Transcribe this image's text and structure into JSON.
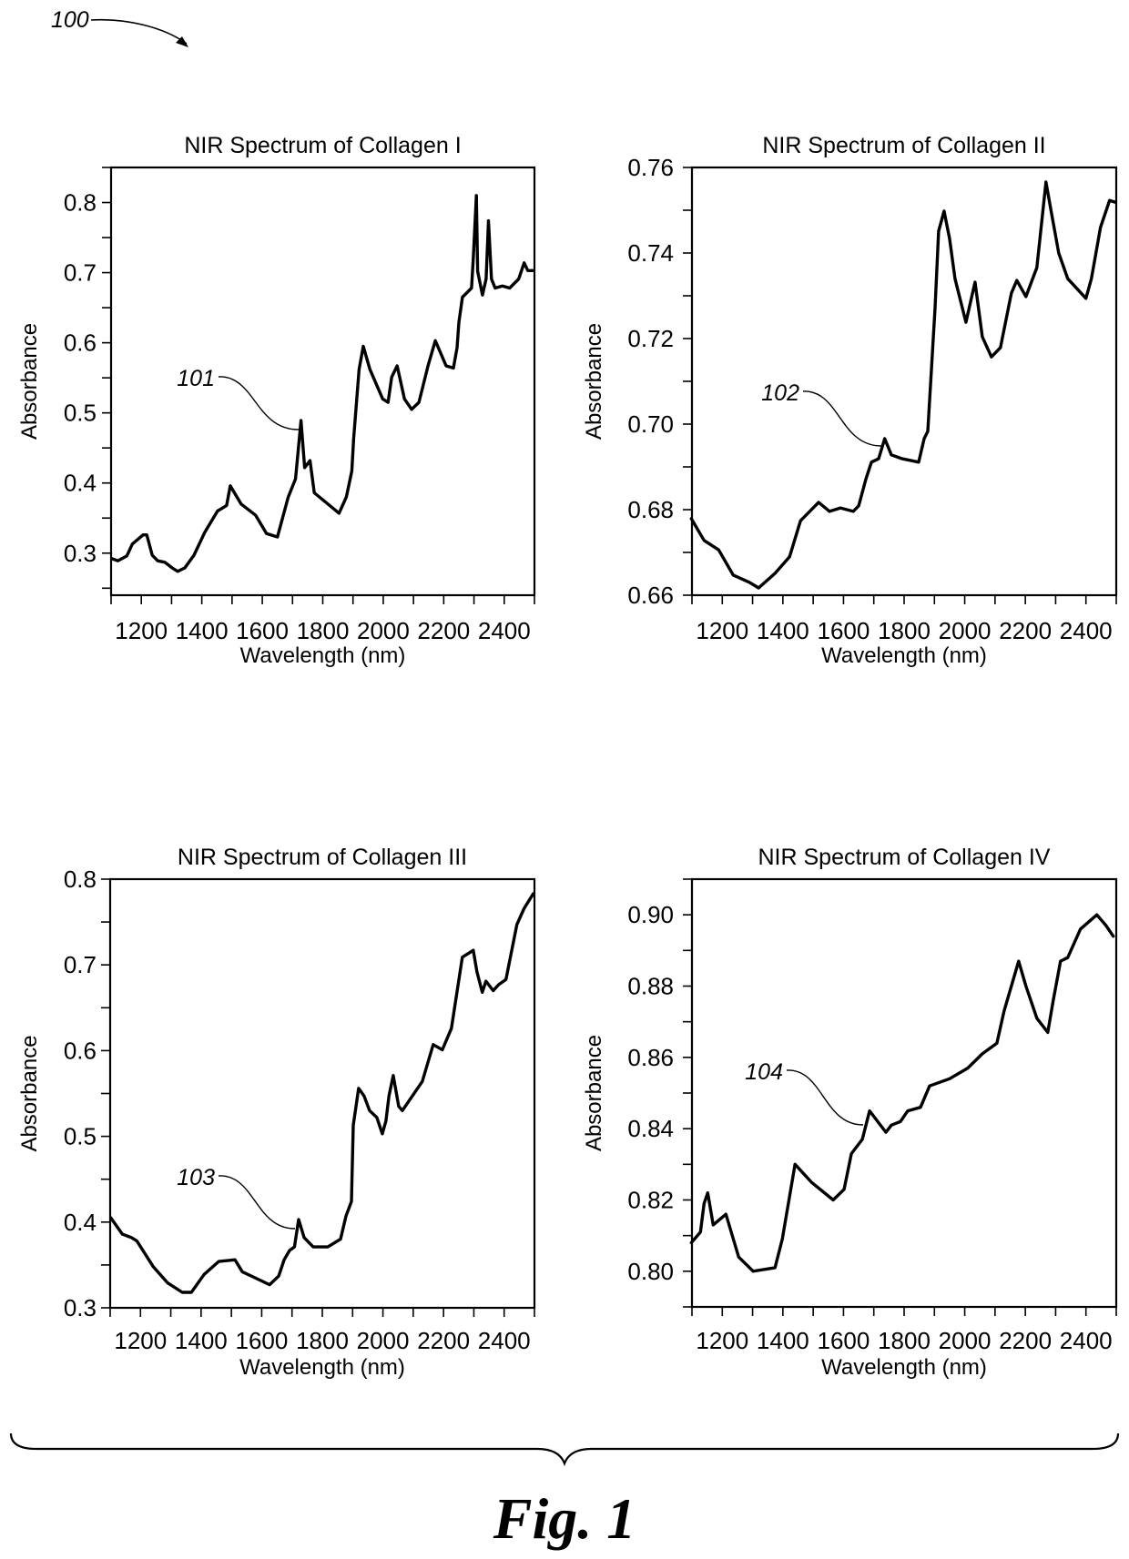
{
  "figure": {
    "reference_numeral": "100",
    "caption": "Fig. 1"
  },
  "chart_data": [
    {
      "type": "line",
      "title": "NIR Spectrum of Collagen I",
      "xlabel": "Wavelength (nm)",
      "ylabel": "Absorbance",
      "xlim": [
        1100,
        2500
      ],
      "ylim": [
        0.24,
        0.85
      ],
      "xticks": [
        1200,
        1400,
        1600,
        1800,
        2000,
        2200,
        2400
      ],
      "xtick_labels": [
        "1200",
        "1400",
        "1600",
        "1800",
        "2000",
        "2200",
        "2400"
      ],
      "yticks": [
        0.3,
        0.4,
        0.5,
        0.6,
        0.7,
        0.8
      ],
      "ytick_labels": [
        "0.3",
        "0.4",
        "0.5",
        "0.6",
        "0.7",
        "0.8"
      ],
      "minor_x_step": 100,
      "minor_y_step": 0.05,
      "grid": false,
      "annotation": {
        "label": "101",
        "x": 1728,
        "y": 0.475
      },
      "series": [
        {
          "name": "Collagen I",
          "x": [
            1104,
            1122,
            1152,
            1170,
            1206,
            1218,
            1236,
            1254,
            1278,
            1302,
            1320,
            1344,
            1374,
            1410,
            1452,
            1482,
            1494,
            1530,
            1578,
            1614,
            1650,
            1686,
            1710,
            1728,
            1740,
            1758,
            1772,
            1854,
            1878,
            1896,
            1902,
            1920,
            1934,
            1956,
            1998,
            2016,
            2028,
            2046,
            2070,
            2094,
            2118,
            2148,
            2172,
            2208,
            2232,
            2244,
            2250,
            2262,
            2292,
            2298,
            2308,
            2312,
            2328,
            2340,
            2348,
            2358,
            2370,
            2394,
            2418,
            2448,
            2466,
            2478,
            2496
          ],
          "y": [
            0.292,
            0.289,
            0.296,
            0.313,
            0.326,
            0.326,
            0.297,
            0.289,
            0.287,
            0.279,
            0.274,
            0.279,
            0.297,
            0.33,
            0.36,
            0.368,
            0.396,
            0.37,
            0.354,
            0.328,
            0.323,
            0.38,
            0.406,
            0.489,
            0.422,
            0.432,
            0.386,
            0.357,
            0.38,
            0.417,
            0.463,
            0.562,
            0.595,
            0.562,
            0.52,
            0.515,
            0.551,
            0.567,
            0.52,
            0.505,
            0.515,
            0.567,
            0.603,
            0.567,
            0.564,
            0.593,
            0.629,
            0.665,
            0.678,
            0.722,
            0.81,
            0.702,
            0.668,
            0.691,
            0.774,
            0.691,
            0.678,
            0.681,
            0.678,
            0.691,
            0.714,
            0.703,
            0.703
          ]
        }
      ]
    },
    {
      "type": "line",
      "title": "NIR Spectrum of Collagen II",
      "xlabel": "Wavelength (nm)",
      "ylabel": "Absorbance",
      "xlim": [
        1100,
        2500
      ],
      "ylim": [
        0.66,
        0.76
      ],
      "xticks": [
        1200,
        1400,
        1600,
        1800,
        2000,
        2200,
        2400
      ],
      "xtick_labels": [
        "1200",
        "1400",
        "1600",
        "1800",
        "2000",
        "2200",
        "2400"
      ],
      "yticks": [
        0.66,
        0.68,
        0.7,
        0.72,
        0.74,
        0.76
      ],
      "ytick_labels": [
        "0.66",
        "0.68",
        "0.70",
        "0.72",
        "0.74",
        "0.76"
      ],
      "minor_x_step": 100,
      "minor_y_step": 0.01,
      "grid": false,
      "annotation": {
        "label": "102",
        "x": 1730,
        "y": 0.6955
      },
      "series": [
        {
          "name": "Collagen II",
          "x": [
            1098,
            1140,
            1188,
            1236,
            1290,
            1320,
            1374,
            1422,
            1458,
            1518,
            1554,
            1590,
            1632,
            1650,
            1674,
            1692,
            1716,
            1736,
            1758,
            1794,
            1848,
            1866,
            1878,
            1902,
            1914,
            1932,
            1950,
            1968,
            1986,
            2004,
            2034,
            2058,
            2088,
            2118,
            2154,
            2172,
            2202,
            2238,
            2252,
            2268,
            2286,
            2310,
            2340,
            2400,
            2418,
            2448,
            2478,
            2496
          ],
          "y": [
            0.6779,
            0.6728,
            0.6706,
            0.6647,
            0.663,
            0.6617,
            0.6651,
            0.669,
            0.6774,
            0.6817,
            0.6796,
            0.6804,
            0.6796,
            0.6809,
            0.6872,
            0.6911,
            0.6919,
            0.6966,
            0.6928,
            0.6919,
            0.6911,
            0.6966,
            0.6983,
            0.7272,
            0.7451,
            0.7498,
            0.7434,
            0.734,
            0.7289,
            0.7238,
            0.7332,
            0.7204,
            0.7157,
            0.7179,
            0.7306,
            0.7336,
            0.7298,
            0.7366,
            0.746,
            0.7566,
            0.7494,
            0.74,
            0.734,
            0.7294,
            0.734,
            0.746,
            0.7523,
            0.7519
          ]
        }
      ]
    },
    {
      "type": "line",
      "title": "NIR Spectrum of Collagen III",
      "xlabel": "Wavelength (nm)",
      "ylabel": "Absorbance",
      "xlim": [
        1100,
        2500
      ],
      "ylim": [
        0.3,
        0.8
      ],
      "xticks": [
        1200,
        1400,
        1600,
        1800,
        2000,
        2200,
        2400
      ],
      "xtick_labels": [
        "1200",
        "1400",
        "1600",
        "1800",
        "2000",
        "2200",
        "2400"
      ],
      "yticks": [
        0.3,
        0.4,
        0.5,
        0.6,
        0.7,
        0.8
      ],
      "ytick_labels": [
        "0.3",
        "0.4",
        "0.5",
        "0.6",
        "0.7",
        "0.8"
      ],
      "minor_x_step": 100,
      "minor_y_step": 0.05,
      "grid": false,
      "annotation": {
        "label": "103",
        "x": 1712,
        "y": 0.39
      },
      "series": [
        {
          "name": "Collagen III",
          "x": [
            1102,
            1140,
            1170,
            1188,
            1242,
            1290,
            1338,
            1368,
            1410,
            1458,
            1512,
            1536,
            1578,
            1626,
            1656,
            1674,
            1692,
            1708,
            1722,
            1740,
            1770,
            1818,
            1860,
            1878,
            1896,
            1902,
            1920,
            1938,
            1956,
            1980,
            1998,
            2010,
            2020,
            2034,
            2052,
            2064,
            2130,
            2166,
            2196,
            2226,
            2262,
            2280,
            2298,
            2310,
            2328,
            2340,
            2364,
            2382,
            2406,
            2424,
            2442,
            2466,
            2496
          ],
          "y": [
            0.405,
            0.386,
            0.382,
            0.378,
            0.348,
            0.329,
            0.318,
            0.318,
            0.339,
            0.354,
            0.356,
            0.342,
            0.335,
            0.327,
            0.337,
            0.356,
            0.367,
            0.371,
            0.403,
            0.382,
            0.371,
            0.371,
            0.38,
            0.407,
            0.424,
            0.513,
            0.556,
            0.547,
            0.53,
            0.522,
            0.503,
            0.518,
            0.547,
            0.571,
            0.535,
            0.53,
            0.564,
            0.607,
            0.601,
            0.626,
            0.709,
            0.713,
            0.717,
            0.692,
            0.668,
            0.681,
            0.67,
            0.677,
            0.683,
            0.715,
            0.747,
            0.766,
            0.783
          ]
        }
      ]
    },
    {
      "type": "line",
      "title": "NIR Spectrum of Collagen IV",
      "xlabel": "Wavelength (nm)",
      "ylabel": "Absorbance",
      "xlim": [
        1100,
        2500
      ],
      "ylim": [
        0.79,
        0.91
      ],
      "xticks": [
        1200,
        1400,
        1600,
        1800,
        2000,
        2200,
        2400
      ],
      "xtick_labels": [
        "1200",
        "1400",
        "1600",
        "1800",
        "2000",
        "2200",
        "2400"
      ],
      "yticks": [
        0.8,
        0.82,
        0.84,
        0.86,
        0.88,
        0.9
      ],
      "ytick_labels": [
        "0.80",
        "0.82",
        "0.84",
        "0.86",
        "0.88",
        "0.90"
      ],
      "minor_x_step": 100,
      "minor_y_step": 0.01,
      "grid": false,
      "annotation": {
        "label": "104",
        "x": 1668,
        "y": 0.841
      },
      "series": [
        {
          "name": "Collagen IV",
          "x": [
            1098,
            1128,
            1140,
            1152,
            1170,
            1212,
            1254,
            1302,
            1374,
            1398,
            1440,
            1494,
            1566,
            1602,
            1626,
            1662,
            1686,
            1704,
            1740,
            1758,
            1788,
            1812,
            1854,
            1884,
            1950,
            2010,
            2058,
            2106,
            2130,
            2178,
            2202,
            2238,
            2274,
            2292,
            2316,
            2340,
            2382,
            2436,
            2466,
            2490
          ],
          "y": [
            0.808,
            0.811,
            0.819,
            0.822,
            0.813,
            0.816,
            0.804,
            0.8,
            0.801,
            0.809,
            0.83,
            0.825,
            0.82,
            0.823,
            0.833,
            0.837,
            0.845,
            0.843,
            0.839,
            0.841,
            0.842,
            0.845,
            0.846,
            0.852,
            0.854,
            0.857,
            0.861,
            0.864,
            0.873,
            0.887,
            0.88,
            0.871,
            0.867,
            0.876,
            0.887,
            0.888,
            0.896,
            0.9,
            0.897,
            0.894
          ]
        }
      ]
    }
  ]
}
